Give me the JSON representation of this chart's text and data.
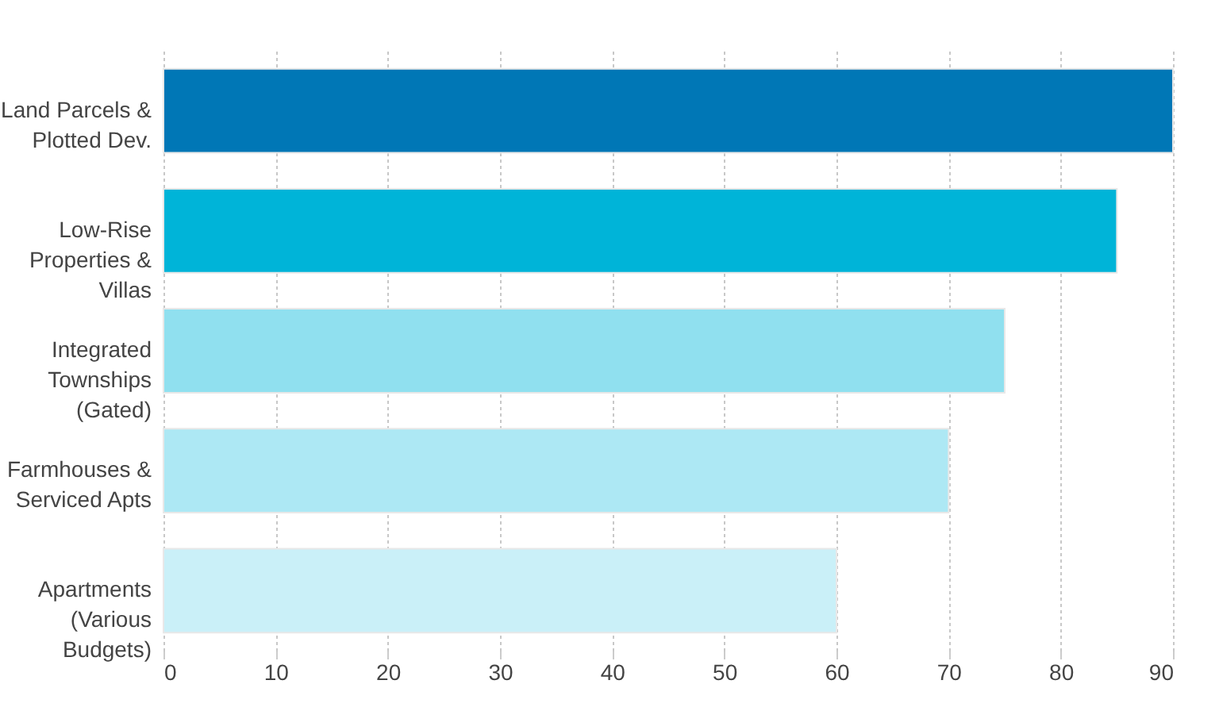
{
  "chart_data": {
    "type": "bar",
    "orientation": "horizontal",
    "categories": [
      "Land Parcels & Plotted Dev.",
      "Low-Rise Properties & Villas",
      "Integrated Townships (Gated)",
      "Farmhouses & Serviced Apts",
      "Apartments (Various Budgets)"
    ],
    "values": [
      90,
      85,
      75,
      70,
      60
    ],
    "colors": [
      "#0077b6",
      "#00b4d8",
      "#90e0ef",
      "#ade8f4",
      "#caf0f8"
    ],
    "xlim": [
      0,
      90
    ],
    "xticks": [
      0,
      10,
      20,
      30,
      40,
      50,
      60,
      70,
      80,
      90
    ],
    "grid": "x"
  }
}
